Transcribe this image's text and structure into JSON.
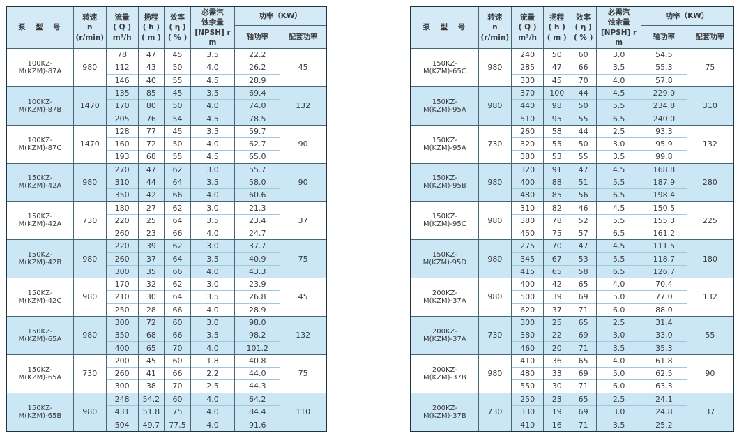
{
  "colors": {
    "header_bg": "#d4ebf7",
    "shaded_row_bg": "#cbe7f6",
    "white_row_bg": "#ffffff",
    "outer_border": "#22343f",
    "grid_dark": "#4a6574",
    "grid_light": "#9fc8dc",
    "text": "#3b3b3b"
  },
  "header": {
    "model": "泵　型　号",
    "speed": "转速\nn\n(r/min)",
    "flow": "流量\n( Q )\nm³/h",
    "head": "扬程\n( h )\n( m )",
    "efficiency": "效率\n( η )\n( % )",
    "npsh": "必需汽\n蚀余量\n[NPSH] r\nm",
    "power": "功率（KW）",
    "shaft_power": "轴功率",
    "matched_power": "配套功率"
  },
  "tables": {
    "left": {
      "groups": [
        {
          "model": "100KZ-M(KZM)-87A",
          "speed": "980",
          "matched": "45",
          "shaded": false,
          "rows": [
            [
              "78",
              "47",
              "45",
              "3.5",
              "22.2"
            ],
            [
              "112",
              "43",
              "50",
              "4.0",
              "26.2"
            ],
            [
              "146",
              "40",
              "55",
              "4.5",
              "28.9"
            ]
          ]
        },
        {
          "model": "100KZ-M(KZM)-87B",
          "speed": "1470",
          "matched": "132",
          "shaded": true,
          "rows": [
            [
              "135",
              "85",
              "45",
              "3.5",
              "69.4"
            ],
            [
              "170",
              "80",
              "50",
              "4.0",
              "74.0"
            ],
            [
              "205",
              "76",
              "54",
              "4.5",
              "78.5"
            ]
          ]
        },
        {
          "model": "100KZ-M(KZM)-87C",
          "speed": "1470",
          "matched": "90",
          "shaded": false,
          "rows": [
            [
              "128",
              "77",
              "45",
              "3.5",
              "59.7"
            ],
            [
              "160",
              "72",
              "50",
              "4.0",
              "62.7"
            ],
            [
              "193",
              "68",
              "55",
              "4.5",
              "65.0"
            ]
          ]
        },
        {
          "model": "150KZ-M(KZM)-42A",
          "speed": "980",
          "matched": "90",
          "shaded": true,
          "rows": [
            [
              "270",
              "47",
              "62",
              "3.0",
              "55.7"
            ],
            [
              "310",
              "44",
              "64",
              "3.5",
              "58.0"
            ],
            [
              "350",
              "42",
              "66",
              "4.0",
              "60.6"
            ]
          ]
        },
        {
          "model": "150KZ-M(KZM)-42A",
          "speed": "730",
          "matched": "37",
          "shaded": false,
          "rows": [
            [
              "180",
              "27",
              "62",
              "3.0",
              "21.3"
            ],
            [
              "220",
              "25",
              "64",
              "3.5",
              "23.4"
            ],
            [
              "260",
              "23",
              "66",
              "4.0",
              "24.7"
            ]
          ]
        },
        {
          "model": "150KZ-M(KZM)-42B",
          "speed": "980",
          "matched": "75",
          "shaded": true,
          "rows": [
            [
              "220",
              "39",
              "62",
              "3.0",
              "37.7"
            ],
            [
              "260",
              "37",
              "64",
              "3.5",
              "40.9"
            ],
            [
              "300",
              "35",
              "66",
              "4.0",
              "43.3"
            ]
          ]
        },
        {
          "model": "150KZ-M(KZM)-42C",
          "speed": "980",
          "matched": "45",
          "shaded": false,
          "rows": [
            [
              "170",
              "32",
              "62",
              "3.0",
              "23.9"
            ],
            [
              "210",
              "30",
              "64",
              "3.5",
              "26.8"
            ],
            [
              "250",
              "28",
              "66",
              "4.0",
              "28.9"
            ]
          ]
        },
        {
          "model": "150KZ-M(KZM)-65A",
          "speed": "980",
          "matched": "132",
          "shaded": true,
          "rows": [
            [
              "300",
              "72",
              "60",
              "3.0",
              "98.0"
            ],
            [
              "350",
              "68",
              "66",
              "3.5",
              "98.2"
            ],
            [
              "400",
              "65",
              "70",
              "4.0",
              "101.2"
            ]
          ]
        },
        {
          "model": "150KZ-M(KZM)-65A",
          "speed": "730",
          "matched": "75",
          "shaded": false,
          "rows": [
            [
              "200",
              "45",
              "60",
              "1.8",
              "40.8"
            ],
            [
              "260",
              "41",
              "66",
              "2.2",
              "44.0"
            ],
            [
              "300",
              "38",
              "70",
              "2.5",
              "44.3"
            ]
          ]
        },
        {
          "model": "150KZ-M(KZM)-65B",
          "speed": "980",
          "matched": "110",
          "shaded": true,
          "rows": [
            [
              "248",
              "54.2",
              "60",
              "4.0",
              "64.2"
            ],
            [
              "431",
              "51.8",
              "75",
              "4.0",
              "84.4"
            ],
            [
              "504",
              "49.7",
              "77.5",
              "4.0",
              "91.6"
            ]
          ]
        }
      ]
    },
    "right": {
      "groups": [
        {
          "model": "150KZ-M(KZM)-65C",
          "speed": "980",
          "matched": "75",
          "shaded": false,
          "rows": [
            [
              "240",
              "50",
              "60",
              "3.0",
              "54.5"
            ],
            [
              "285",
              "47",
              "66",
              "3.5",
              "55.3"
            ],
            [
              "330",
              "45",
              "70",
              "4.0",
              "57.8"
            ]
          ]
        },
        {
          "model": "150KZ-M(KZM)-95A",
          "speed": "980",
          "matched": "310",
          "shaded": true,
          "rows": [
            [
              "370",
              "100",
              "44",
              "4.5",
              "229.0"
            ],
            [
              "440",
              "98",
              "50",
              "5.5",
              "234.8"
            ],
            [
              "510",
              "95",
              "55",
              "6.5",
              "240.0"
            ]
          ]
        },
        {
          "model": "150KZ-M(KZM)-95A",
          "speed": "730",
          "matched": "132",
          "shaded": false,
          "rows": [
            [
              "260",
              "58",
              "44",
              "2.5",
              "93.3"
            ],
            [
              "320",
              "55",
              "50",
              "3.0",
              "95.9"
            ],
            [
              "380",
              "53",
              "55",
              "3.5",
              "99.8"
            ]
          ]
        },
        {
          "model": "150KZ-M(KZM)-95B",
          "speed": "980",
          "matched": "280",
          "shaded": true,
          "rows": [
            [
              "320",
              "91",
              "47",
              "4.5",
              "168.8"
            ],
            [
              "400",
              "88",
              "51",
              "5.5",
              "187.9"
            ],
            [
              "480",
              "85",
              "56",
              "6.5",
              "198.4"
            ]
          ]
        },
        {
          "model": "150KZ-M(KZM)-95C",
          "speed": "980",
          "matched": "225",
          "shaded": false,
          "rows": [
            [
              "310",
              "82",
              "46",
              "4.5",
              "150.5"
            ],
            [
              "380",
              "78",
              "52",
              "5.5",
              "155.3"
            ],
            [
              "450",
              "75",
              "57",
              "6.5",
              "161.2"
            ]
          ]
        },
        {
          "model": "150KZ-M(KZM)-95D",
          "speed": "980",
          "matched": "180",
          "shaded": true,
          "rows": [
            [
              "275",
              "70",
              "47",
              "4.5",
              "111.5"
            ],
            [
              "345",
              "67",
              "53",
              "5.5",
              "118.7"
            ],
            [
              "415",
              "65",
              "58",
              "6.5",
              "126.7"
            ]
          ]
        },
        {
          "model": "200KZ-M(KZM)-37A",
          "speed": "980",
          "matched": "132",
          "shaded": false,
          "rows": [
            [
              "400",
              "42",
              "65",
              "4.0",
              "70.4"
            ],
            [
              "500",
              "39",
              "69",
              "5.0",
              "77.0"
            ],
            [
              "620",
              "37",
              "71",
              "6.0",
              "88.0"
            ]
          ]
        },
        {
          "model": "200KZ-M(KZM)-37A",
          "speed": "730",
          "matched": "55",
          "shaded": true,
          "rows": [
            [
              "300",
              "25",
              "65",
              "2.5",
              "31.4"
            ],
            [
              "380",
              "22",
              "69",
              "3.0",
              "33.0"
            ],
            [
              "460",
              "20",
              "71",
              "3.5",
              "35.3"
            ]
          ]
        },
        {
          "model": "200KZ-M(KZM)-37B",
          "speed": "980",
          "matched": "90",
          "shaded": false,
          "rows": [
            [
              "410",
              "36",
              "65",
              "4.0",
              "61.8"
            ],
            [
              "480",
              "33",
              "69",
              "5.0",
              "62.5"
            ],
            [
              "550",
              "30",
              "71",
              "6.0",
              "63.3"
            ]
          ]
        },
        {
          "model": "200KZ-M(KZM)-37B",
          "speed": "730",
          "matched": "37",
          "shaded": true,
          "rows": [
            [
              "250",
              "23",
              "65",
              "2.5",
              "24.1"
            ],
            [
              "330",
              "19",
              "69",
              "3.0",
              "24.8"
            ],
            [
              "410",
              "16",
              "71",
              "3.5",
              "25.2"
            ]
          ]
        }
      ]
    }
  }
}
